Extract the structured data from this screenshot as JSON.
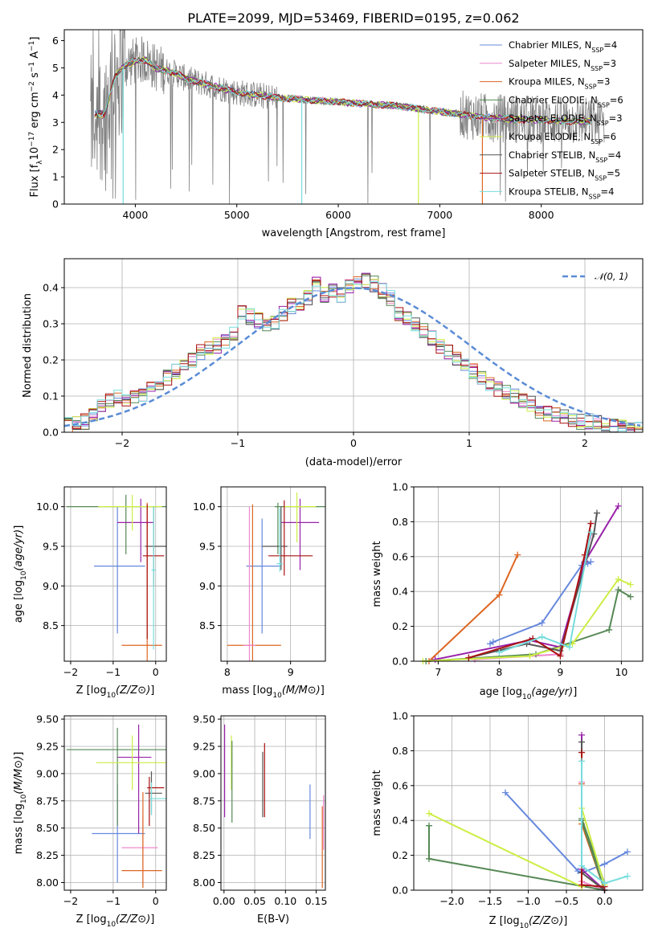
{
  "title": "PLATE=2099, MJD=53469, FIBERID=0195, z=0.062",
  "colors": {
    "chabrier_miles": "#6688dd",
    "salpeter_miles": "#ee88cc",
    "kroupa_miles": "#dd6622",
    "chabrier_elodie": "#558855",
    "salpeter_elodie": "#9922aa",
    "kroupa_elodie": "#ccee44",
    "chabrier_stelib": "#555555",
    "salpeter_stelib": "#aa1111",
    "kroupa_stelib": "#77dddd",
    "data": "#808080",
    "normal": "#5a8bd6"
  },
  "chart_data": [
    {
      "id": "spectrum",
      "type": "line",
      "title": "PLATE=2099, MJD=53469, FIBERID=0195, z=0.062",
      "xlabel": "wavelength [Angstrom, rest frame]",
      "ylabel": "Flux [f_λ 10^-17 erg cm^-2 s^-1 A^-1]",
      "xlim": [
        3300,
        9000
      ],
      "ylim": [
        0,
        6.4
      ],
      "xticks": [
        4000,
        5000,
        6000,
        7000,
        8000
      ],
      "yticks": [
        0,
        1,
        2,
        3,
        4,
        5,
        6
      ],
      "grid": false,
      "legend_position": "top-right",
      "legend": [
        {
          "label": "Chabrier MILES, N",
          "sub": "SSP",
          "suffix": "=4"
        },
        {
          "label": "Salpeter MILES, N",
          "sub": "SSP",
          "suffix": "=3"
        },
        {
          "label": "Kroupa MILES, N",
          "sub": "SSP",
          "suffix": "=3"
        },
        {
          "label": "Chabrier ELODIE, N",
          "sub": "SSP",
          "suffix": "=6"
        },
        {
          "label": "Salpeter ELODIE, N",
          "sub": "SSP",
          "suffix": "=3"
        },
        {
          "label": "Kroupa ELODIE, N",
          "sub": "SSP",
          "suffix": "=6"
        },
        {
          "label": "Chabrier STELIB, N",
          "sub": "SSP",
          "suffix": "=4"
        },
        {
          "label": "Salpeter STELIB, N",
          "sub": "SSP",
          "suffix": "=5"
        },
        {
          "label": "Kroupa STELIB, N",
          "sub": "SSP",
          "suffix": "=4"
        }
      ],
      "model_continuum": {
        "x": [
          3600,
          3700,
          3800,
          3900,
          4000,
          4100,
          4200,
          4300,
          4400,
          4500,
          4600,
          4800,
          5000,
          5200,
          5400,
          5600,
          5800,
          6000,
          6200,
          6400,
          6600,
          6800,
          7000,
          7200,
          7400,
          7600,
          7800,
          8000,
          8200,
          8400,
          8600
        ],
        "y": [
          3.3,
          3.3,
          4.7,
          5.1,
          5.25,
          5.3,
          5.0,
          4.9,
          4.8,
          4.6,
          4.5,
          4.3,
          4.1,
          4.0,
          3.9,
          3.85,
          3.8,
          3.75,
          3.7,
          3.65,
          3.6,
          3.5,
          3.4,
          3.3,
          3.2,
          3.15,
          3.1,
          3.1,
          3.05,
          3.05,
          3.0
        ]
      }
    },
    {
      "id": "residuals",
      "type": "histogram",
      "xlabel": "(data-model)/error",
      "ylabel": "Normed distribution",
      "xlim": [
        -2.5,
        2.5
      ],
      "ylim": [
        0,
        0.48
      ],
      "xticks": [
        -2,
        -1,
        0,
        1,
        2
      ],
      "yticks": [
        0.0,
        0.1,
        0.2,
        0.3,
        0.4
      ],
      "grid": true,
      "legend_position": "top-right",
      "normal_label": "N(0,1)",
      "bin_width": 0.1,
      "bins_start": -2.5,
      "mean_values": [
        0.02,
        0.025,
        0.03,
        0.05,
        0.07,
        0.09,
        0.095,
        0.09,
        0.095,
        0.1,
        0.13,
        0.14,
        0.15,
        0.17,
        0.18,
        0.2,
        0.22,
        0.23,
        0.24,
        0.25,
        0.27,
        0.33,
        0.32,
        0.31,
        0.3,
        0.3,
        0.33,
        0.35,
        0.36,
        0.37,
        0.41,
        0.38,
        0.39,
        0.38,
        0.4,
        0.41,
        0.42,
        0.41,
        0.39,
        0.37,
        0.33,
        0.32,
        0.3,
        0.28,
        0.26,
        0.24,
        0.22,
        0.2,
        0.18,
        0.17,
        0.15,
        0.13,
        0.12,
        0.11,
        0.1,
        0.09,
        0.08,
        0.06,
        0.05,
        0.05,
        0.04,
        0.035,
        0.03,
        0.03,
        0.025,
        0.02,
        0.02,
        0.015,
        0.015,
        0.01
      ]
    },
    {
      "id": "z-age",
      "type": "errorbar",
      "xlabel": "Z [log10(Z/Z⊙)]",
      "ylabel": "age [log10(age/yr)]",
      "xlim": [
        -2.15,
        0.25
      ],
      "ylim": [
        8.05,
        10.25
      ],
      "xticks": [
        -2,
        -1,
        0
      ],
      "yticks": [
        8.5,
        9.0,
        9.5,
        10.0
      ],
      "grid": true,
      "points": [
        {
          "series": "chabrier_miles",
          "x": -0.9,
          "y": 9.25,
          "xerr": [
            0.55,
            0.65
          ],
          "yerr": [
            0.85,
            0.75
          ]
        },
        {
          "series": "kroupa_miles",
          "x": -0.2,
          "y": 8.25,
          "xerr": [
            0.6,
            0.35
          ],
          "yerr": [
            0.2,
            1.8
          ]
        },
        {
          "series": "chabrier_elodie",
          "x": -0.7,
          "y": 10.0,
          "xerr": [
            1.4,
            1.7
          ],
          "yerr": [
            0.6,
            0.15
          ]
        },
        {
          "series": "salpeter_elodie",
          "x": -0.35,
          "y": 9.8,
          "xerr": [
            0.55,
            0.3
          ],
          "yerr": [
            0.5,
            0.3
          ]
        },
        {
          "series": "kroupa_elodie",
          "x": -0.55,
          "y": 10.0,
          "xerr": [
            0.8,
            0.7
          ],
          "yerr": [
            0.3,
            0.15
          ]
        },
        {
          "series": "chabrier_stelib",
          "x": -0.05,
          "y": 9.5,
          "xerr": [
            0.2,
            0.3
          ],
          "yerr": [
            0.5,
            0.5
          ]
        },
        {
          "series": "salpeter_stelib",
          "x": -0.2,
          "y": 9.38,
          "xerr": [
            0.1,
            0.4
          ],
          "yerr": [
            1.05,
            0.65
          ]
        },
        {
          "series": "kroupa_stelib",
          "x": -0.05,
          "y": 9.2,
          "xerr": [
            0.05,
            0.05
          ],
          "yerr": [
            1.0,
            0.8
          ]
        }
      ]
    },
    {
      "id": "mass-age",
      "type": "errorbar",
      "xlabel": "mass [log10(M/M⊙)]",
      "ylabel": "",
      "xlim": [
        7.9,
        9.55
      ],
      "ylim": [
        8.05,
        10.25
      ],
      "xticks": [
        8,
        9
      ],
      "yticks": [
        8.5,
        9.0,
        9.5,
        10.0
      ],
      "grid": true,
      "points": [
        {
          "series": "chabrier_miles",
          "x": 8.55,
          "y": 9.25,
          "xerr": [
            0.25,
            0.3
          ],
          "yerr": [
            0.85,
            0.6
          ]
        },
        {
          "series": "kroupa_miles",
          "x": 8.4,
          "y": 8.25,
          "xerr": [
            0.4,
            0.45
          ],
          "yerr": [
            0.2,
            1.78
          ]
        },
        {
          "series": "salpeter_miles",
          "x": 8.35,
          "y": 8.25,
          "xerr": [
            0.1,
            0.1
          ],
          "yerr": [
            0.2,
            1.75
          ]
        },
        {
          "series": "chabrier_elodie",
          "x": 8.8,
          "y": 10.0,
          "xerr": [
            0.05,
            1.0
          ],
          "yerr": [
            0.6,
            0.05
          ]
        },
        {
          "series": "salpeter_elodie",
          "x": 9.15,
          "y": 9.8,
          "xerr": [
            0.3,
            0.3
          ],
          "yerr": [
            0.6,
            0.3
          ]
        },
        {
          "series": "kroupa_elodie",
          "x": 9.1,
          "y": 10.0,
          "xerr": [
            0.2,
            0.3
          ],
          "yerr": [
            0.45,
            0.18
          ]
        },
        {
          "series": "chabrier_stelib",
          "x": 8.85,
          "y": 9.5,
          "xerr": [
            0.3,
            0.1
          ],
          "yerr": [
            0.3,
            0.5
          ]
        },
        {
          "series": "salpeter_stelib",
          "x": 8.9,
          "y": 9.38,
          "xerr": [
            0.25,
            0.45
          ],
          "yerr": [
            0.25,
            0.7
          ]
        },
        {
          "series": "kroupa_stelib",
          "x": 8.83,
          "y": 9.28,
          "xerr": [
            0.05,
            0.05
          ],
          "yerr": [
            0.1,
            0.7
          ]
        }
      ]
    },
    {
      "id": "age-mass-weight",
      "type": "line",
      "xlabel": "age [log10(age/yr)]",
      "ylabel": "mass weight",
      "xlim": [
        6.6,
        10.35
      ],
      "ylim": [
        0,
        1.0
      ],
      "xticks": [
        7,
        8,
        9,
        10
      ],
      "yticks": [
        0.0,
        0.2,
        0.4,
        0.6,
        0.8,
        1.0
      ],
      "grid": true,
      "series": [
        {
          "series": "chabrier_miles",
          "x": [
            7.85,
            7.9,
            8.7,
            9.35,
            9.45,
            9.5
          ],
          "y": [
            0.1,
            0.11,
            0.22,
            0.55,
            0.56,
            0.57
          ]
        },
        {
          "series": "salpeter_miles",
          "x": [
            7.6,
            9.0,
            9.5
          ],
          "y": [
            0.01,
            0.04,
            0.72
          ]
        },
        {
          "series": "kroupa_miles",
          "x": [
            6.85,
            8.0,
            8.3
          ],
          "y": [
            0.0,
            0.38,
            0.61
          ]
        },
        {
          "series": "chabrier_elodie",
          "x": [
            6.8,
            8.6,
            9.8,
            9.95,
            10.15
          ],
          "y": [
            0.0,
            0.04,
            0.18,
            0.41,
            0.37
          ]
        },
        {
          "series": "salpeter_elodie",
          "x": [
            6.95,
            8.5,
            9.0,
            9.4,
            9.95
          ],
          "y": [
            0.01,
            0.12,
            0.08,
            0.57,
            0.89
          ]
        },
        {
          "series": "kroupa_elodie",
          "x": [
            6.75,
            8.5,
            9.2,
            9.95,
            10.15
          ],
          "y": [
            0.0,
            0.03,
            0.1,
            0.47,
            0.44
          ]
        },
        {
          "series": "chabrier_stelib",
          "x": [
            7.5,
            8.45,
            9.0,
            9.55,
            9.6
          ],
          "y": [
            0.02,
            0.1,
            0.06,
            0.73,
            0.85
          ]
        },
        {
          "series": "salpeter_stelib",
          "x": [
            7.5,
            8.55,
            9.0,
            9.4,
            9.5
          ],
          "y": [
            0.02,
            0.13,
            0.03,
            0.61,
            0.79
          ]
        },
        {
          "series": "kroupa_stelib",
          "x": [
            8.0,
            8.7,
            9.15,
            9.5
          ],
          "y": [
            0.05,
            0.14,
            0.08,
            0.74
          ]
        }
      ]
    },
    {
      "id": "z-mass",
      "type": "errorbar",
      "xlabel": "Z [log10(Z/Z⊙)]",
      "ylabel": "mass [log10(M/M⊙)]",
      "xlim": [
        -2.15,
        0.25
      ],
      "ylim": [
        7.93,
        9.53
      ],
      "xticks": [
        -2,
        -1,
        0
      ],
      "yticks": [
        8.0,
        8.25,
        8.5,
        8.75,
        9.0,
        9.25,
        9.5
      ],
      "grid": true,
      "points": [
        {
          "series": "chabrier_miles",
          "x": -0.9,
          "y": 8.45,
          "xerr": [
            0.6,
            0.65
          ],
          "yerr": [
            0.45,
            0.45
          ]
        },
        {
          "series": "salpeter_miles",
          "x": -0.3,
          "y": 8.32,
          "xerr": [
            0.5,
            0.35
          ],
          "yerr": [
            0.35,
            0.3
          ]
        },
        {
          "series": "kroupa_miles",
          "x": -0.3,
          "y": 8.11,
          "xerr": [
            0.5,
            0.45
          ],
          "yerr": [
            0.16,
            0.72
          ]
        },
        {
          "series": "chabrier_elodie",
          "x": -0.9,
          "y": 9.22,
          "xerr": [
            1.2,
            1.15
          ],
          "yerr": [
            0.7,
            0.2
          ]
        },
        {
          "series": "salpeter_elodie",
          "x": -0.4,
          "y": 9.15,
          "xerr": [
            0.5,
            0.3
          ],
          "yerr": [
            0.7,
            0.3
          ]
        },
        {
          "series": "kroupa_elodie",
          "x": -0.55,
          "y": 9.1,
          "xerr": [
            0.85,
            0.8
          ],
          "yerr": [
            0.25,
            0.25
          ]
        },
        {
          "series": "chabrier_stelib",
          "x": -0.1,
          "y": 8.82,
          "xerr": [
            0.15,
            0.25
          ],
          "yerr": [
            0.2,
            0.2
          ]
        },
        {
          "series": "salpeter_stelib",
          "x": -0.15,
          "y": 8.87,
          "xerr": [
            0.05,
            0.35
          ],
          "yerr": [
            0.35,
            0.1
          ]
        },
        {
          "series": "kroupa_stelib",
          "x": -0.1,
          "y": 8.77,
          "xerr": [
            0.05,
            0.4
          ],
          "yerr": [
            0.15,
            0.15
          ]
        }
      ]
    },
    {
      "id": "ebv-mass",
      "type": "errorbar",
      "xlabel": "E(B-V)",
      "ylabel": "",
      "xlim": [
        -0.005,
        0.165
      ],
      "ylim": [
        7.93,
        9.53
      ],
      "xticks": [
        0.0,
        0.05,
        0.1,
        0.15
      ],
      "yticks": [
        8.0,
        8.25,
        8.5,
        8.75,
        9.0,
        9.25,
        9.5
      ],
      "grid": true,
      "points": [
        {
          "series": "salpeter_elodie",
          "x": 0.001,
          "y": 9.0,
          "yerr": [
            0.4,
            0.45
          ]
        },
        {
          "series": "kroupa_elodie",
          "x": 0.012,
          "y": 9.1,
          "yerr": [
            0.25,
            0.25
          ]
        },
        {
          "series": "chabrier_elodie",
          "x": 0.013,
          "y": 9.0,
          "yerr": [
            0.45,
            0.3
          ]
        },
        {
          "series": "chabrier_stelib",
          "x": 0.063,
          "y": 8.9,
          "yerr": [
            0.3,
            0.3
          ]
        },
        {
          "series": "salpeter_stelib",
          "x": 0.066,
          "y": 8.9,
          "yerr": [
            0.3,
            0.38
          ]
        },
        {
          "series": "chabrier_miles",
          "x": 0.14,
          "y": 8.6,
          "yerr": [
            0.2,
            0.3
          ]
        },
        {
          "series": "kroupa_miles",
          "x": 0.16,
          "y": 8.3,
          "yerr": [
            0.35,
            0.4
          ]
        },
        {
          "series": "salpeter_miles",
          "x": 0.162,
          "y": 8.5,
          "yerr": [
            0.2,
            0.3
          ]
        }
      ]
    },
    {
      "id": "z-mass-weight",
      "type": "line",
      "xlabel": "Z [log10(Z/Z⊙)]",
      "ylabel": "mass weight",
      "xlim": [
        -2.5,
        0.5
      ],
      "ylim": [
        0,
        1.0
      ],
      "xticks": [
        -2.0,
        -1.5,
        -1.0,
        -0.5,
        0.0
      ],
      "yticks": [
        0.0,
        0.2,
        0.4,
        0.6,
        0.8,
        1.0
      ],
      "grid": true,
      "series": [
        {
          "series": "chabrier_miles",
          "x": [
            -1.3,
            -0.35,
            -0.3,
            0.0,
            0.3
          ],
          "y": [
            0.56,
            0.11,
            0.1,
            0.15,
            0.22
          ]
        },
        {
          "series": "salpeter_miles",
          "x": [
            -0.3,
            -0.3,
            0.0
          ],
          "y": [
            0.62,
            0.05,
            0.0
          ]
        },
        {
          "series": "kroupa_miles",
          "x": [
            -0.3,
            -0.3,
            0.0
          ],
          "y": [
            0.61,
            0.38,
            0.0
          ]
        },
        {
          "series": "chabrier_elodie",
          "x": [
            -2.3,
            -2.3,
            0.0,
            -0.3,
            -0.3,
            0.0
          ],
          "y": [
            0.37,
            0.18,
            0.0,
            0.4,
            0.41,
            0.04
          ]
        },
        {
          "series": "salpeter_elodie",
          "x": [
            -0.3,
            -0.3,
            0.0
          ],
          "y": [
            0.89,
            0.12,
            0.0
          ]
        },
        {
          "series": "kroupa_elodie",
          "x": [
            -2.3,
            -0.3,
            -0.3,
            0.0
          ],
          "y": [
            0.44,
            0.02,
            0.47,
            0.03
          ]
        },
        {
          "series": "chabrier_stelib",
          "x": [
            -0.3,
            -0.3,
            0.0
          ],
          "y": [
            0.85,
            0.1,
            0.0
          ]
        },
        {
          "series": "salpeter_stelib",
          "x": [
            -0.3,
            -0.3,
            0.0
          ],
          "y": [
            0.79,
            0.03,
            0.02
          ]
        },
        {
          "series": "kroupa_stelib",
          "x": [
            -0.3,
            -0.3,
            0.0,
            0.3
          ],
          "y": [
            0.74,
            0.14,
            0.04,
            0.08
          ]
        }
      ]
    }
  ]
}
